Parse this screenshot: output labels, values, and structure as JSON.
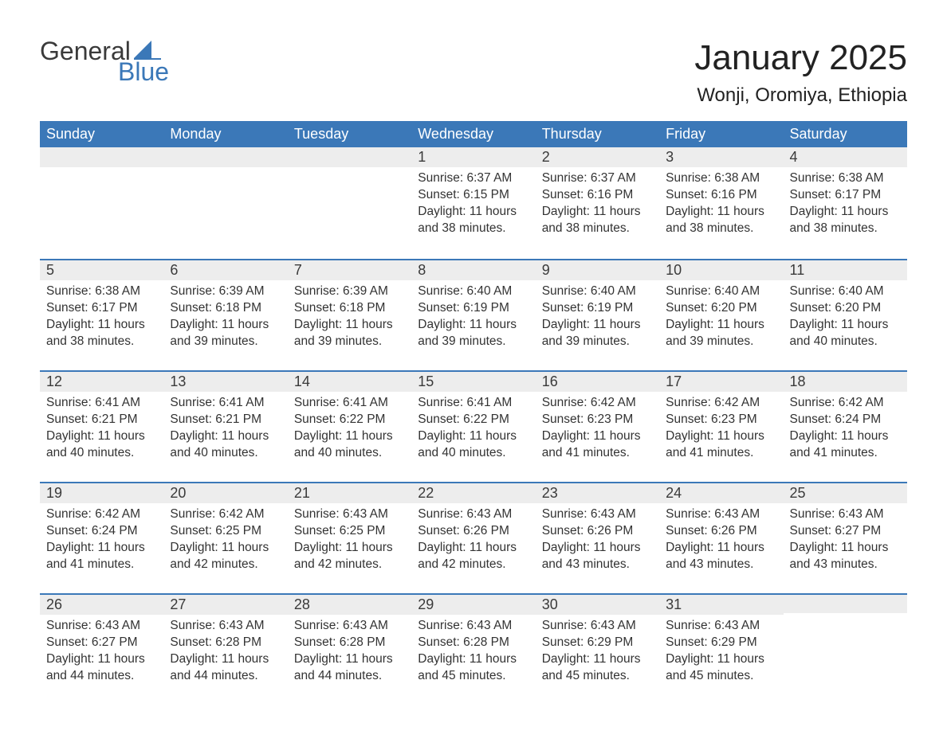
{
  "logo": {
    "word1": "General",
    "word2": "Blue"
  },
  "title": "January 2025",
  "location": "Wonji, Oromiya, Ethiopia",
  "colors": {
    "header_bg": "#3b78b8",
    "header_text": "#ffffff",
    "daynum_bg": "#ededed",
    "daynum_border": "#3b78b8",
    "body_text": "#333333",
    "page_bg": "#ffffff",
    "logo_gray": "#3a3a3a",
    "logo_blue": "#3b78b8"
  },
  "fonts": {
    "title_pt": 44,
    "location_pt": 24,
    "weekday_pt": 18,
    "daynum_pt": 18,
    "body_pt": 15.5
  },
  "weekdays": [
    "Sunday",
    "Monday",
    "Tuesday",
    "Wednesday",
    "Thursday",
    "Friday",
    "Saturday"
  ],
  "calendar": {
    "leading_blanks": 3,
    "days": [
      {
        "n": 1,
        "sunrise": "6:37 AM",
        "sunset": "6:15 PM",
        "daylight": "11 hours and 38 minutes."
      },
      {
        "n": 2,
        "sunrise": "6:37 AM",
        "sunset": "6:16 PM",
        "daylight": "11 hours and 38 minutes."
      },
      {
        "n": 3,
        "sunrise": "6:38 AM",
        "sunset": "6:16 PM",
        "daylight": "11 hours and 38 minutes."
      },
      {
        "n": 4,
        "sunrise": "6:38 AM",
        "sunset": "6:17 PM",
        "daylight": "11 hours and 38 minutes."
      },
      {
        "n": 5,
        "sunrise": "6:38 AM",
        "sunset": "6:17 PM",
        "daylight": "11 hours and 38 minutes."
      },
      {
        "n": 6,
        "sunrise": "6:39 AM",
        "sunset": "6:18 PM",
        "daylight": "11 hours and 39 minutes."
      },
      {
        "n": 7,
        "sunrise": "6:39 AM",
        "sunset": "6:18 PM",
        "daylight": "11 hours and 39 minutes."
      },
      {
        "n": 8,
        "sunrise": "6:40 AM",
        "sunset": "6:19 PM",
        "daylight": "11 hours and 39 minutes."
      },
      {
        "n": 9,
        "sunrise": "6:40 AM",
        "sunset": "6:19 PM",
        "daylight": "11 hours and 39 minutes."
      },
      {
        "n": 10,
        "sunrise": "6:40 AM",
        "sunset": "6:20 PM",
        "daylight": "11 hours and 39 minutes."
      },
      {
        "n": 11,
        "sunrise": "6:40 AM",
        "sunset": "6:20 PM",
        "daylight": "11 hours and 40 minutes."
      },
      {
        "n": 12,
        "sunrise": "6:41 AM",
        "sunset": "6:21 PM",
        "daylight": "11 hours and 40 minutes."
      },
      {
        "n": 13,
        "sunrise": "6:41 AM",
        "sunset": "6:21 PM",
        "daylight": "11 hours and 40 minutes."
      },
      {
        "n": 14,
        "sunrise": "6:41 AM",
        "sunset": "6:22 PM",
        "daylight": "11 hours and 40 minutes."
      },
      {
        "n": 15,
        "sunrise": "6:41 AM",
        "sunset": "6:22 PM",
        "daylight": "11 hours and 40 minutes."
      },
      {
        "n": 16,
        "sunrise": "6:42 AM",
        "sunset": "6:23 PM",
        "daylight": "11 hours and 41 minutes."
      },
      {
        "n": 17,
        "sunrise": "6:42 AM",
        "sunset": "6:23 PM",
        "daylight": "11 hours and 41 minutes."
      },
      {
        "n": 18,
        "sunrise": "6:42 AM",
        "sunset": "6:24 PM",
        "daylight": "11 hours and 41 minutes."
      },
      {
        "n": 19,
        "sunrise": "6:42 AM",
        "sunset": "6:24 PM",
        "daylight": "11 hours and 41 minutes."
      },
      {
        "n": 20,
        "sunrise": "6:42 AM",
        "sunset": "6:25 PM",
        "daylight": "11 hours and 42 minutes."
      },
      {
        "n": 21,
        "sunrise": "6:43 AM",
        "sunset": "6:25 PM",
        "daylight": "11 hours and 42 minutes."
      },
      {
        "n": 22,
        "sunrise": "6:43 AM",
        "sunset": "6:26 PM",
        "daylight": "11 hours and 42 minutes."
      },
      {
        "n": 23,
        "sunrise": "6:43 AM",
        "sunset": "6:26 PM",
        "daylight": "11 hours and 43 minutes."
      },
      {
        "n": 24,
        "sunrise": "6:43 AM",
        "sunset": "6:26 PM",
        "daylight": "11 hours and 43 minutes."
      },
      {
        "n": 25,
        "sunrise": "6:43 AM",
        "sunset": "6:27 PM",
        "daylight": "11 hours and 43 minutes."
      },
      {
        "n": 26,
        "sunrise": "6:43 AM",
        "sunset": "6:27 PM",
        "daylight": "11 hours and 44 minutes."
      },
      {
        "n": 27,
        "sunrise": "6:43 AM",
        "sunset": "6:28 PM",
        "daylight": "11 hours and 44 minutes."
      },
      {
        "n": 28,
        "sunrise": "6:43 AM",
        "sunset": "6:28 PM",
        "daylight": "11 hours and 44 minutes."
      },
      {
        "n": 29,
        "sunrise": "6:43 AM",
        "sunset": "6:28 PM",
        "daylight": "11 hours and 45 minutes."
      },
      {
        "n": 30,
        "sunrise": "6:43 AM",
        "sunset": "6:29 PM",
        "daylight": "11 hours and 45 minutes."
      },
      {
        "n": 31,
        "sunrise": "6:43 AM",
        "sunset": "6:29 PM",
        "daylight": "11 hours and 45 minutes."
      }
    ],
    "trailing_blanks": 1
  },
  "labels": {
    "sunrise": "Sunrise:",
    "sunset": "Sunset:",
    "daylight": "Daylight:"
  }
}
